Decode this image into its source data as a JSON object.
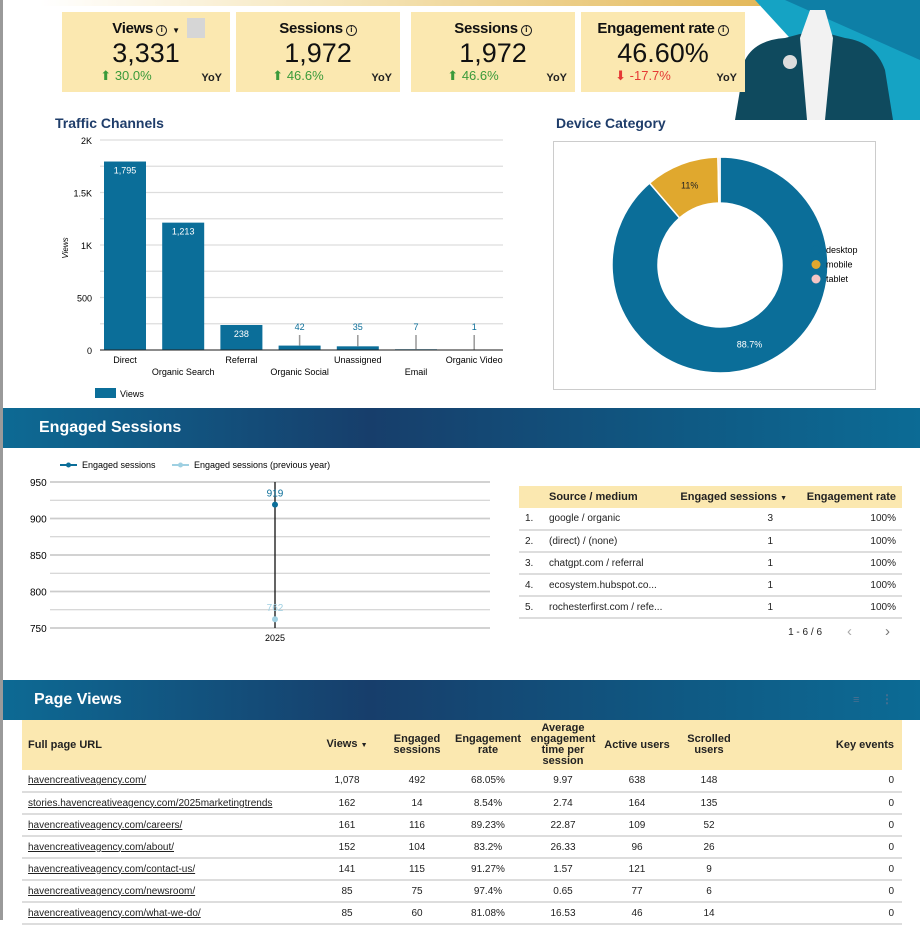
{
  "kpis": [
    {
      "title": "Views",
      "value": "3,331",
      "delta": "30.0%",
      "direction": "up",
      "yoy": "YoY",
      "has_dropdown": true
    },
    {
      "title": "Sessions",
      "value": "1,972",
      "delta": "46.6%",
      "direction": "up",
      "yoy": "YoY"
    },
    {
      "title": "Sessions",
      "value": "1,972",
      "delta": "46.6%",
      "direction": "up",
      "yoy": "YoY"
    },
    {
      "title": "Engagement rate",
      "value": "46.60%",
      "delta": "-17.7%",
      "direction": "down",
      "yoy": "YoY"
    }
  ],
  "colors": {
    "accent": "#0b6e99",
    "mobile": "#e0a82e",
    "tablet": "#f4c5c5",
    "prev_year": "#9fd0e2",
    "header_bg": "#fbe8b0"
  },
  "chart_data": [
    {
      "type": "bar",
      "title": "Traffic Channels",
      "ylabel": "Views",
      "categories": [
        "Direct",
        "Organic Search",
        "Referral",
        "Organic Social",
        "Unassigned",
        "Email",
        "Organic Video"
      ],
      "values": [
        1795,
        1213,
        238,
        42,
        35,
        7,
        1
      ],
      "value_labels": [
        "1,795",
        "1,213",
        "238",
        "42",
        "35",
        "7",
        "1"
      ],
      "yticks": [
        "0",
        "500",
        "1K",
        "1.5K",
        "2K"
      ],
      "ylim": [
        0,
        2000
      ],
      "legend": "Views",
      "legend_position": "bottom-left",
      "grid": true
    },
    {
      "type": "pie",
      "title": "Device Category",
      "donut": true,
      "labels": [
        "desktop",
        "mobile",
        "tablet"
      ],
      "values": [
        88.7,
        11,
        0.3
      ],
      "slice_labels": [
        "88.7%",
        "11%",
        ""
      ],
      "legend_position": "right"
    },
    {
      "type": "line",
      "x": [
        "2025"
      ],
      "series": [
        {
          "name": "Engaged sessions",
          "values": [
            919
          ]
        },
        {
          "name": "Engaged sessions (previous year)",
          "values": [
            762
          ]
        }
      ],
      "yticks": [
        "750",
        "800",
        "850",
        "900",
        "950"
      ],
      "ylim": [
        750,
        950
      ],
      "legend_position": "top",
      "grid": true
    }
  ],
  "engaged": {
    "title": "Engaged Sessions",
    "table": {
      "headers": [
        "Source / medium",
        "Engaged sessions",
        "Engagement rate"
      ],
      "rows": [
        [
          "1.",
          "google / organic",
          "3",
          "100%"
        ],
        [
          "2.",
          "(direct) / (none)",
          "1",
          "100%"
        ],
        [
          "3.",
          "chatgpt.com / referral",
          "1",
          "100%"
        ],
        [
          "4.",
          "ecosystem.hubspot.co...",
          "1",
          "100%"
        ],
        [
          "5.",
          "rochesterfirst.com / refe...",
          "1",
          "100%"
        ]
      ],
      "pagination": "1 - 6 / 6"
    }
  },
  "pageviews": {
    "title": "Page Views",
    "headers": [
      "Full page URL",
      "Views",
      "Engaged sessions",
      "Engagement rate",
      "Average engagement time per session",
      "Active users",
      "Scrolled users",
      "Key events"
    ],
    "rows": [
      [
        "havencreativeagency.com/",
        "1,078",
        "492",
        "68.05%",
        "9.97",
        "638",
        "148",
        "0"
      ],
      [
        "stories.havencreativeagency.com/2025marketingtrends",
        "162",
        "14",
        "8.54%",
        "2.74",
        "164",
        "135",
        "0"
      ],
      [
        "havencreativeagency.com/careers/",
        "161",
        "116",
        "89.23%",
        "22.87",
        "109",
        "52",
        "0"
      ],
      [
        "havencreativeagency.com/about/",
        "152",
        "104",
        "83.2%",
        "26.33",
        "96",
        "26",
        "0"
      ],
      [
        "havencreativeagency.com/contact-us/",
        "141",
        "115",
        "91.27%",
        "1.57",
        "121",
        "9",
        "0"
      ],
      [
        "havencreativeagency.com/newsroom/",
        "85",
        "75",
        "97.4%",
        "0.65",
        "77",
        "6",
        "0"
      ],
      [
        "havencreativeagency.com/what-we-do/",
        "85",
        "60",
        "81.08%",
        "16.53",
        "46",
        "14",
        "0"
      ]
    ]
  }
}
